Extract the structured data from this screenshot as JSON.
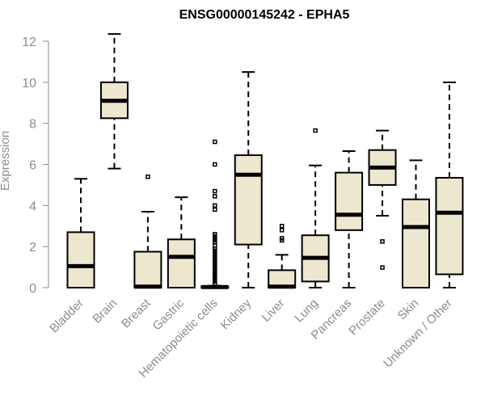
{
  "chart_data": {
    "type": "boxplot",
    "title": "ENSG00000145242 - EPHA5",
    "xlabel": "",
    "ylabel": "Expression",
    "ylim": [
      0,
      12.3
    ],
    "yticks": [
      0,
      2,
      4,
      6,
      8,
      10,
      12
    ],
    "ytick_labels": [
      "0",
      "2",
      "4",
      "6",
      "8",
      "10",
      "12"
    ],
    "categories": [
      "Bladder",
      "Brain",
      "Breast",
      "Gastric",
      "Hematopoietic cells",
      "Kidney",
      "Liver",
      "Lung",
      "Pancreas",
      "Prostate",
      "Skin",
      "Unknown / Other"
    ],
    "boxes": [
      {
        "label": "Bladder",
        "min": 0,
        "q1": 0,
        "median": 1.05,
        "q3": 2.7,
        "max": 5.3,
        "outliers": []
      },
      {
        "label": "Brain",
        "min": 5.8,
        "q1": 8.25,
        "median": 9.1,
        "q3": 10.0,
        "max": 12.35,
        "outliers": []
      },
      {
        "label": "Breast",
        "min": 0,
        "q1": 0,
        "median": 0.05,
        "q3": 1.75,
        "max": 3.7,
        "outliers": [
          5.4
        ]
      },
      {
        "label": "Gastric",
        "min": 0,
        "q1": 0,
        "median": 1.5,
        "q3": 2.35,
        "max": 4.4,
        "outliers": []
      },
      {
        "label": "Hematopoietic cells",
        "min": 0,
        "q1": 0,
        "median": 0.03,
        "q3": 0.06,
        "max": 0.1,
        "outliers": [
          7.1,
          6.0,
          4.7,
          4.45,
          4.0,
          3.8,
          2.6,
          2.5,
          2.4,
          2.3,
          2.2,
          2.05,
          1.9,
          1.8,
          1.7,
          1.6,
          1.5,
          1.4,
          1.3,
          1.2,
          1.1,
          1.0,
          0.9,
          0.8,
          0.7,
          0.6,
          0.5,
          0.4,
          0.3,
          0.2
        ]
      },
      {
        "label": "Kidney",
        "min": 0,
        "q1": 2.1,
        "median": 5.5,
        "q3": 6.45,
        "max": 10.5,
        "outliers": []
      },
      {
        "label": "Liver",
        "min": 0,
        "q1": 0,
        "median": 0.05,
        "q3": 0.85,
        "max": 1.6,
        "outliers": [
          3.0,
          2.8,
          2.4,
          2.3
        ]
      },
      {
        "label": "Lung",
        "min": 0,
        "q1": 0.3,
        "median": 1.45,
        "q3": 2.55,
        "max": 5.95,
        "outliers": [
          7.65
        ]
      },
      {
        "label": "Pancreas",
        "min": 0,
        "q1": 2.8,
        "median": 3.55,
        "q3": 5.6,
        "max": 6.65,
        "outliers": []
      },
      {
        "label": "Prostate",
        "min": 3.5,
        "q1": 5.0,
        "median": 5.85,
        "q3": 6.7,
        "max": 7.65,
        "outliers": [
          2.25,
          0.98
        ]
      },
      {
        "label": "Skin",
        "min": 0,
        "q1": 0,
        "median": 2.95,
        "q3": 4.3,
        "max": 6.2,
        "outliers": []
      },
      {
        "label": "Unknown / Other",
        "min": 0,
        "q1": 0.65,
        "median": 3.65,
        "q3": 5.35,
        "max": 10.0,
        "outliers": []
      }
    ]
  }
}
